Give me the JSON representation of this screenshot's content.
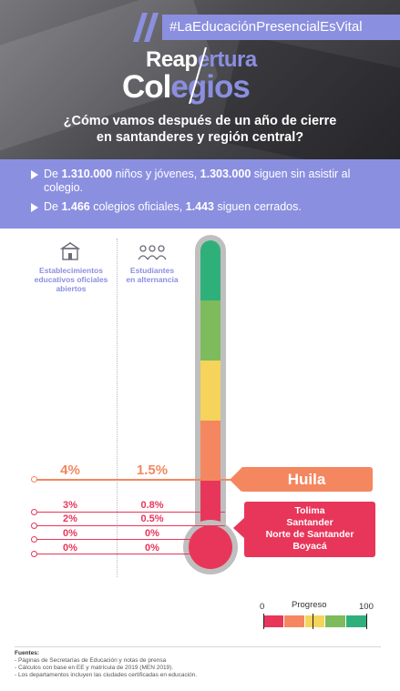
{
  "header": {
    "hashtag": "#LaEducaciónPresencialEsVital",
    "title_top_white": "Reap",
    "title_top_purple": "ertura",
    "title_bottom_white": "Col",
    "title_bottom_purple": "egios",
    "subtitle_line1": "¿Cómo vamos después de un año de cierre",
    "subtitle_line2": "en santanderes y región central?"
  },
  "summary": {
    "bullet1": {
      "p1": "De ",
      "n1": "1.310.000",
      "p2": " niños y jóvenes, ",
      "n2": "1.303.000",
      "p3": " siguen sin asistir al colegio."
    },
    "bullet2": {
      "p1": "De ",
      "n1": "1.466",
      "p2": " colegios oficiales, ",
      "n2": "1.443",
      "p3": " siguen cerrados."
    }
  },
  "columns": {
    "establishments_line1": "Establecimientos",
    "establishments_line2": "educativos oficiales",
    "establishments_line3": "abiertos",
    "students_line1": "Estudiantes",
    "students_line2": "en alternancia"
  },
  "thermometer": {
    "segment_colors": [
      "#2fb07a",
      "#7dbb5c",
      "#f6d35b",
      "#f4875f",
      "#e8365a"
    ]
  },
  "rows": [
    {
      "establishments": "4%",
      "students": "1.5%",
      "color": "#f4875f"
    },
    {
      "establishments": "3%",
      "students": "0.8%",
      "color": "#e8365a"
    },
    {
      "establishments": "2%",
      "students": "0.5%",
      "color": "#e8365a"
    },
    {
      "establishments": "0%",
      "students": "0%",
      "color": "#e8365a"
    },
    {
      "establishments": "0%",
      "students": "0%",
      "color": "#e8365a"
    }
  ],
  "callouts": {
    "huila": "Huila",
    "red_group": [
      "Tolima",
      "Santander",
      "Norte de Santander",
      "Boyacá"
    ]
  },
  "progress": {
    "label": "Progreso",
    "min": "0",
    "max": "100",
    "colors": [
      "#e8365a",
      "#f4875f",
      "#f6d35b",
      "#7dbb5c",
      "#2fb07a"
    ]
  },
  "sources": {
    "heading": "Fuentes:",
    "line1": "- Páginas de Secretarías de Educación y notas de prensa",
    "line2": "- Cálculos con base en EE y matrícula de 2019 (MEN 2019).",
    "line3": "- Los departamentos incluyen las ciudades certificadas en educación."
  }
}
